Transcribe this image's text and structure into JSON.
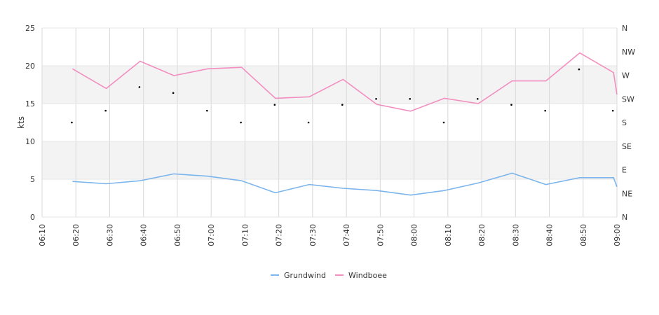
{
  "chart_data": {
    "type": "line",
    "ylabel": "kts",
    "ylim": [
      0,
      25
    ],
    "yticks": [
      "0",
      "5",
      "10",
      "15",
      "20",
      "25"
    ],
    "y2ticks": [
      "N",
      "NE",
      "E",
      "SE",
      "S",
      "SW",
      "W",
      "NW",
      "N"
    ],
    "xlim": [
      "06:10",
      "09:00"
    ],
    "xticks": [
      "06:10",
      "06:20",
      "06:30",
      "06:40",
      "06:50",
      "07:00",
      "07:10",
      "07:20",
      "07:30",
      "07:40",
      "07:50",
      "08:00",
      "08:10",
      "08:20",
      "08:30",
      "08:40",
      "08:50",
      "09:00"
    ],
    "grid": true,
    "legend_position": "bottom",
    "series": [
      {
        "name": "Grundwind",
        "color": "#7cb5ec",
        "x": [
          "06:19",
          "06:29",
          "06:39",
          "06:49",
          "06:59",
          "07:09",
          "07:19",
          "07:29",
          "07:39",
          "07:49",
          "07:59",
          "08:09",
          "08:19",
          "08:29",
          "08:39",
          "08:49",
          "08:59",
          "09:00"
        ],
        "values": [
          4.7,
          4.4,
          4.8,
          5.7,
          5.4,
          4.8,
          3.2,
          4.3,
          3.8,
          3.5,
          2.9,
          3.5,
          4.5,
          5.8,
          4.3,
          5.2,
          5.2,
          4.0
        ]
      },
      {
        "name": "Windboee",
        "color": "#f28fc0",
        "x": [
          "06:19",
          "06:29",
          "06:39",
          "06:49",
          "06:59",
          "07:09",
          "07:19",
          "07:29",
          "07:39",
          "07:49",
          "07:59",
          "08:09",
          "08:19",
          "08:29",
          "08:39",
          "08:49",
          "08:59",
          "09:00"
        ],
        "values": [
          19.6,
          17.0,
          20.6,
          18.7,
          19.6,
          19.8,
          15.7,
          15.9,
          18.2,
          14.9,
          14.0,
          15.7,
          15.0,
          18.0,
          18.0,
          21.7,
          19.1,
          16.2
        ]
      }
    ],
    "direction": {
      "axis": "right",
      "x": [
        "06:19",
        "06:29",
        "06:39",
        "06:49",
        "06:59",
        "07:09",
        "07:19",
        "07:29",
        "07:39",
        "07:49",
        "07:59",
        "08:09",
        "08:19",
        "08:29",
        "08:39",
        "08:49",
        "08:59"
      ],
      "degrees": [
        180,
        202.5,
        247.5,
        236.25,
        202.5,
        180,
        213.75,
        180,
        213.75,
        225,
        225,
        180,
        225,
        213.75,
        202.5,
        281.25,
        202.5
      ]
    }
  }
}
